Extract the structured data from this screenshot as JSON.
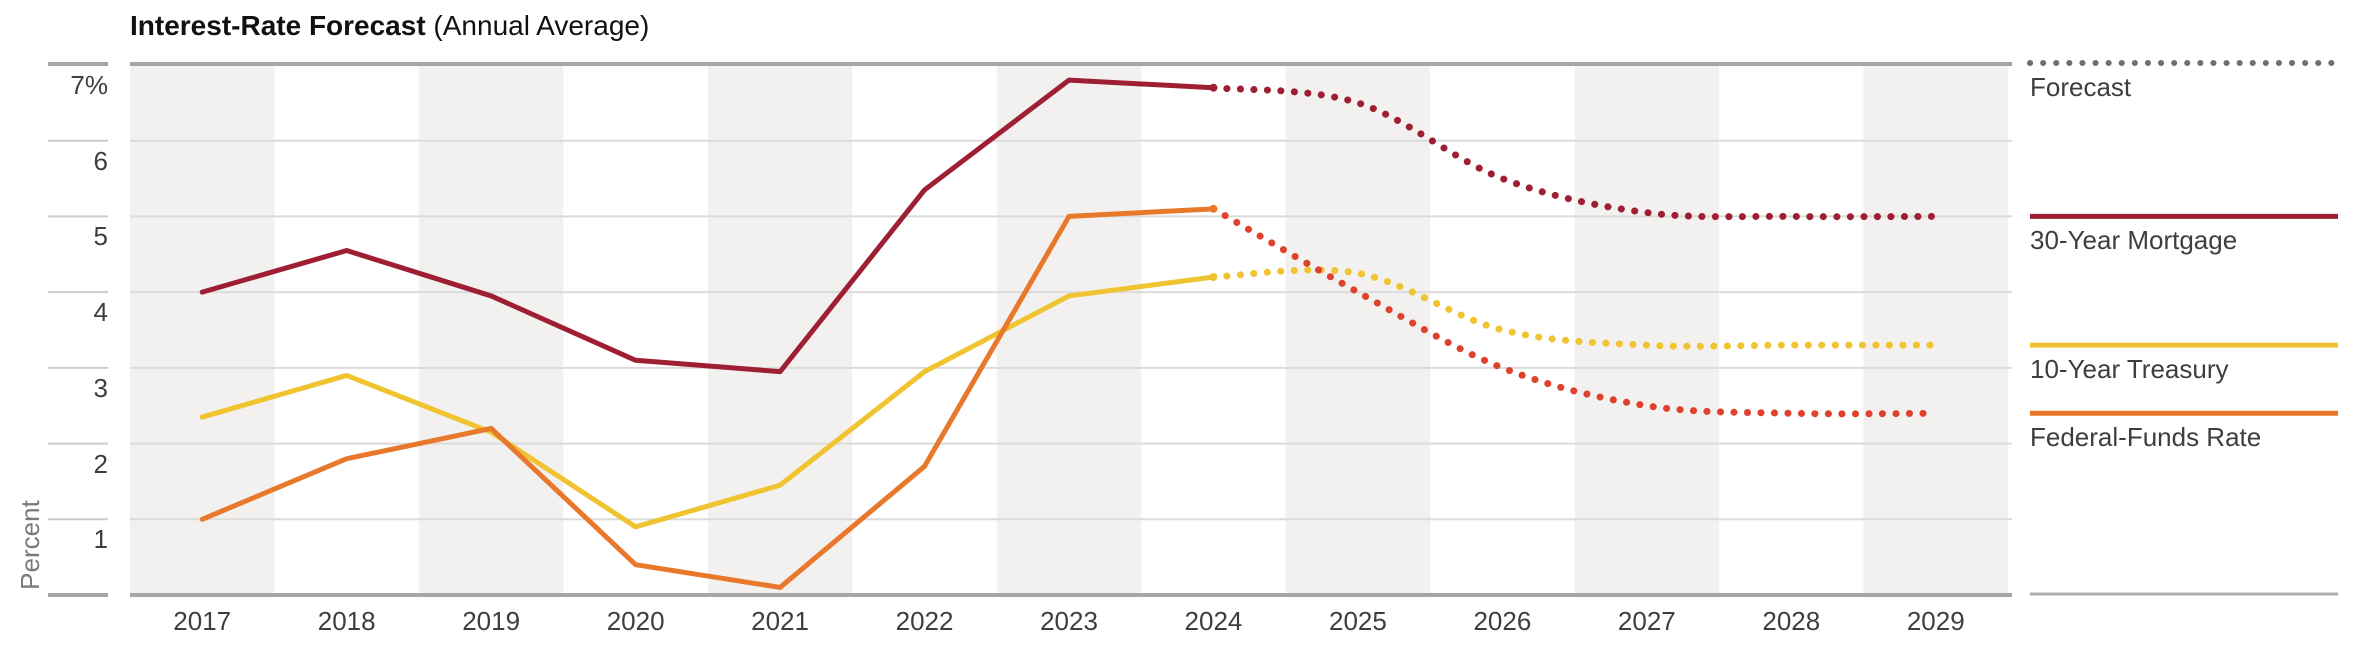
{
  "title": {
    "main": "Interest-Rate Forecast",
    "sub": " (Annual Average)"
  },
  "y_axis": {
    "unit_label": "Percent",
    "tick_labels": [
      "7%",
      "6",
      "5",
      "4",
      "3",
      "2",
      "1"
    ],
    "tick_values": [
      7,
      6,
      5,
      4,
      3,
      2,
      1
    ]
  },
  "x_axis": {
    "years": [
      "2017",
      "2018",
      "2019",
      "2020",
      "2021",
      "2022",
      "2023",
      "2024",
      "2025",
      "2026",
      "2027",
      "2028",
      "2029"
    ]
  },
  "legend": {
    "forecast": {
      "label": "Forecast"
    },
    "mortgage": {
      "label": "30-Year Mortgage"
    },
    "treasury": {
      "label": "10-Year Treasury"
    },
    "fedfunds": {
      "label": "Federal-Funds Rate"
    }
  },
  "colors": {
    "mortgage": "#9E1F33",
    "treasury": "#F0C330",
    "fedfunds_solid": "#E8792C",
    "fedfunds_forecast": "#DE422D",
    "forecast_legend_gray": "#6F6F6F",
    "band": "#F2F1EF",
    "grid_light": "#DBDBDB",
    "grid_dark": "#A6A6A6",
    "tick_light": "#CCCCCC",
    "legend_baseline_gray": "#ADADAD",
    "text_dark": "#3E3E3E",
    "text_gray": "#7A7A7A"
  },
  "chart_data": {
    "type": "line",
    "title": "Interest-Rate Forecast (Annual Average)",
    "xlabel": "",
    "ylabel": "Percent",
    "ylim": [
      0,
      7
    ],
    "grid": "horizontal",
    "legend_position": "right",
    "x": [
      2017,
      2018,
      2019,
      2020,
      2021,
      2022,
      2023,
      2024,
      2025,
      2026,
      2027,
      2028,
      2029
    ],
    "shaded_year_bands": [
      2017,
      2019,
      2021,
      2023,
      2025,
      2027,
      2029
    ],
    "historical_years": [
      2017,
      2018,
      2019,
      2020,
      2021,
      2022,
      2023,
      2024
    ],
    "forecast_years": [
      2024,
      2025,
      2026,
      2027,
      2028,
      2029
    ],
    "series": [
      {
        "name": "30-Year Mortgage",
        "key": "mortgage",
        "historical": [
          4.0,
          4.55,
          3.95,
          3.1,
          2.95,
          5.35,
          6.8,
          6.7
        ],
        "forecast": [
          6.7,
          6.5,
          5.5,
          5.05,
          5.0,
          5.0
        ]
      },
      {
        "name": "10-Year Treasury",
        "key": "treasury",
        "historical": [
          2.35,
          2.9,
          2.15,
          0.9,
          1.45,
          2.95,
          3.95,
          4.2
        ],
        "forecast": [
          4.2,
          4.25,
          3.5,
          3.3,
          3.3,
          3.3
        ]
      },
      {
        "name": "Federal-Funds Rate",
        "key": "fedfunds",
        "historical": [
          1.0,
          1.8,
          2.2,
          0.4,
          0.1,
          1.7,
          5.0,
          5.1
        ],
        "forecast": [
          5.1,
          4.0,
          3.0,
          2.5,
          2.4,
          2.4
        ]
      }
    ]
  }
}
